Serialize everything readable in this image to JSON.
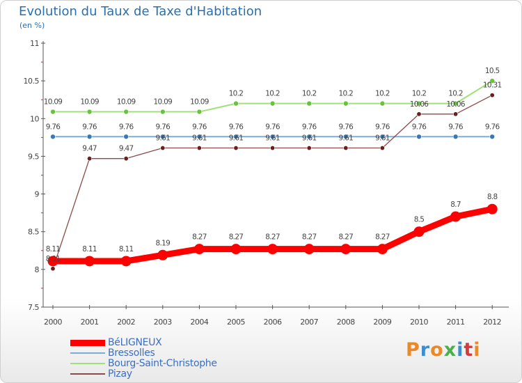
{
  "title": "Evolution du Taux de Taxe d'Habitation",
  "subtitle": "(en %)",
  "logo": {
    "text": "Proxiti",
    "colors": [
      "#e8892a",
      "#3b8fd1",
      "#e8892a",
      "#4bb04b",
      "#3b8fd1",
      "#d63a3a",
      "#e8892a"
    ]
  },
  "chart_data": {
    "type": "line",
    "title": "Evolution du Taux de Taxe d'Habitation",
    "ylabel": "(en %)",
    "xlabel": "",
    "ylim": [
      7.5,
      11
    ],
    "y_ticks": [
      7.5,
      8,
      8.5,
      9,
      9.5,
      10,
      10.5,
      11
    ],
    "y_tick_labels": [
      "7.5",
      "8",
      "8.5",
      "9",
      "9.5",
      "10",
      "10.5",
      "11"
    ],
    "x": [
      "2000",
      "2001",
      "2002",
      "2003",
      "2004",
      "2005",
      "2006",
      "2007",
      "2008",
      "2009",
      "2010",
      "2011",
      "2012"
    ],
    "grid": false,
    "legend_position": "bottom-left",
    "series": [
      {
        "name": "BéLIGNEUX",
        "color": "#ff0000",
        "values": [
          8.11,
          8.11,
          8.11,
          8.19,
          8.27,
          8.27,
          8.27,
          8.27,
          8.27,
          8.27,
          8.5,
          8.7,
          8.8
        ],
        "labels": [
          "8.11",
          "8.11",
          "8.11",
          "8.19",
          "8.27",
          "8.27",
          "8.27",
          "8.27",
          "8.27",
          "8.27",
          "8.5",
          "8.7",
          "8.8"
        ]
      },
      {
        "name": "Bressolles",
        "color": "#7aaed6",
        "marker": "#3a78b5",
        "values": [
          9.76,
          9.76,
          9.76,
          9.76,
          9.76,
          9.76,
          9.76,
          9.76,
          9.76,
          9.76,
          9.76,
          9.76,
          9.76
        ],
        "labels": [
          "9.76",
          "9.76",
          "9.76",
          "9.76",
          "9.76",
          "9.76",
          "9.76",
          "9.76",
          "9.76",
          "9.76",
          "9.76",
          "9.76",
          "9.76"
        ]
      },
      {
        "name": "Bourg-Saint-Christophe",
        "color": "#9fe07a",
        "marker": "#68c23c",
        "values": [
          10.09,
          10.09,
          10.09,
          10.09,
          10.09,
          10.2,
          10.2,
          10.2,
          10.2,
          10.2,
          10.2,
          10.2,
          10.5
        ],
        "labels": [
          "10.09",
          "10.09",
          "10.09",
          "10.09",
          "10.09",
          "10.2",
          "10.2",
          "10.2",
          "10.2",
          "10.2",
          "10.2",
          "10.2",
          "10.5"
        ]
      },
      {
        "name": "Pizay",
        "color": "#8a4a4a",
        "marker": "#6a1f1f",
        "values": [
          8.01,
          9.47,
          9.47,
          9.61,
          9.61,
          9.61,
          9.61,
          9.61,
          9.61,
          9.61,
          10.06,
          10.06,
          10.31
        ],
        "labels": [
          "8.01",
          "9.47",
          "9.47",
          "9.61",
          "9.61",
          "9.61",
          "9.61",
          "9.61",
          "9.61",
          "9.61",
          "10.06",
          "10.06",
          "10.31"
        ]
      }
    ]
  }
}
